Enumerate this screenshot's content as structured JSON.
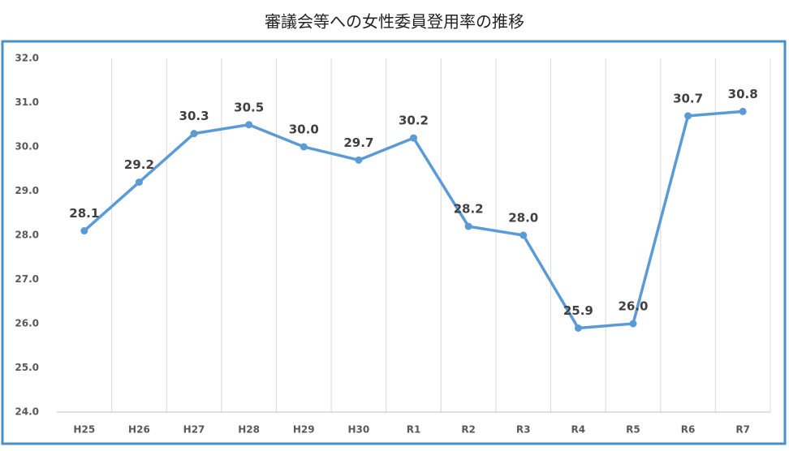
{
  "chart_data": {
    "type": "line",
    "title": "審議会等への女性委員登用率の推移",
    "categories": [
      "H25",
      "H26",
      "H27",
      "H28",
      "H29",
      "H30",
      "R1",
      "R2",
      "R3",
      "R4",
      "R5",
      "R6",
      "R7"
    ],
    "series": [
      {
        "color": "#5b9bd5",
        "values": [
          28.1,
          29.2,
          30.3,
          30.5,
          30.0,
          29.7,
          30.2,
          28.2,
          28.0,
          25.9,
          26.0,
          30.7,
          30.8
        ],
        "value_labels": [
          "28.1",
          "29.2",
          "30.3",
          "30.5",
          "30.0",
          "29.7",
          "30.2",
          "28.2",
          "28.0",
          "25.9",
          "26.0",
          "30.7",
          "30.8"
        ]
      }
    ],
    "ylim": [
      24,
      32
    ],
    "yticks": [
      {
        "value": 24,
        "label": "24.0"
      },
      {
        "value": 25,
        "label": "25.0"
      },
      {
        "value": 26,
        "label": "26.0"
      },
      {
        "value": 27,
        "label": "27.0"
      },
      {
        "value": 28,
        "label": "28.0"
      },
      {
        "value": 29,
        "label": "29.0"
      },
      {
        "value": 30,
        "label": "30.0"
      },
      {
        "value": 31,
        "label": "31.0"
      },
      {
        "value": 32,
        "label": "32.0"
      }
    ]
  }
}
